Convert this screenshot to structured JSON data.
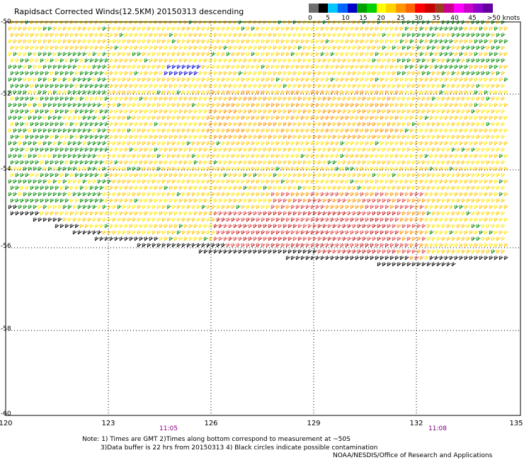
{
  "title": "Rapidsact Corrected Winds(12.5KM) 20150313 descending",
  "legend": {
    "labels": [
      "0",
      "5",
      "10",
      "15",
      "20",
      "25",
      "30",
      "35",
      "40",
      "45",
      ">50 knots"
    ],
    "colors": [
      "#6e6e6e",
      "#000000",
      "#00c8ff",
      "#0064ff",
      "#0000c8",
      "#00a000",
      "#00d200",
      "#ffff00",
      "#ffd200",
      "#ff9600",
      "#ff6400",
      "#ff0000",
      "#c80000",
      "#9b3c1e",
      "#c8008c",
      "#ff00ff",
      "#c800c8",
      "#8c00c8",
      "#6400a0"
    ]
  },
  "y_axis": {
    "labels": [
      "-50",
      "-52",
      "-54",
      "-56",
      "-58",
      "-60"
    ]
  },
  "x_axis": {
    "labels": [
      "120",
      "123",
      "126",
      "129",
      "132",
      "135"
    ]
  },
  "times": [
    "11:05",
    "11:08"
  ],
  "notes": {
    "line1": "Note: 1) Times are GMT 2)Times along bottom correspond to measurement at ~50S",
    "line2": "3)Data buffer is 22 hrs from 20150313 4) Black circles indicate possible contamination",
    "credit": "NOAA/NESDIS/Office of Research and Applications"
  },
  "wind_colors": {
    "yellow": "#ffe600",
    "gold": "#ffc800",
    "orange": "#ff9600",
    "red": "#e04040",
    "darkred": "#c81e1e",
    "green": "#008c00",
    "blue": "#0000d2",
    "black": "#000000"
  }
}
